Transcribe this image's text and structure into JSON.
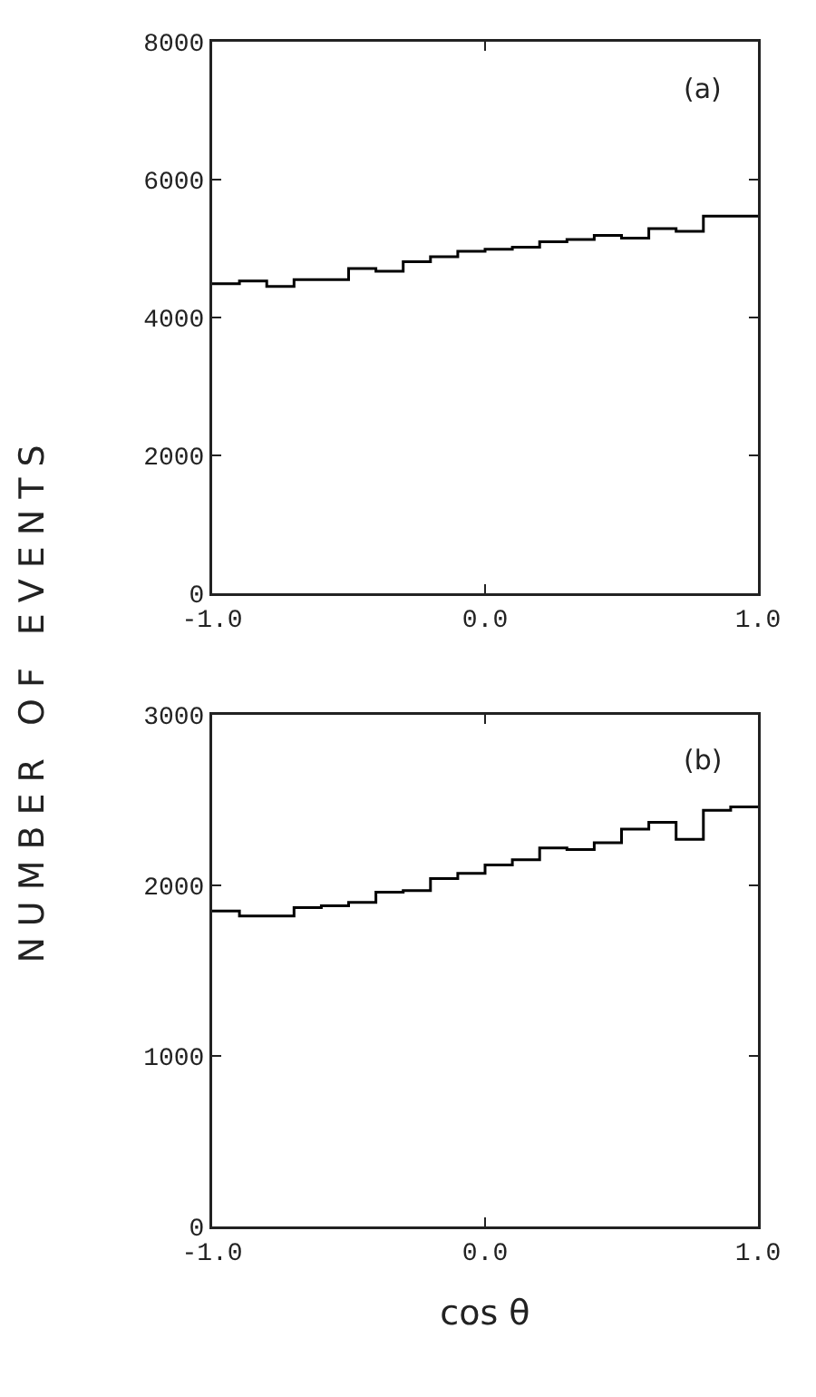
{
  "chart_data": [
    {
      "type": "histogram",
      "ylabel": "NUMBER OF EVENTS",
      "annotations": [
        "(a)"
      ],
      "color": "#000000",
      "bins": [
        -1.0,
        -0.9,
        -0.8,
        -0.7,
        -0.6,
        -0.5,
        -0.4,
        -0.3,
        -0.2,
        -0.1,
        0.0,
        0.1,
        0.2,
        0.3,
        0.4,
        0.5,
        0.6,
        0.7,
        0.8,
        0.9,
        1.0
      ],
      "values": [
        4490,
        4530,
        4450,
        4550,
        4550,
        4710,
        4670,
        4810,
        4880,
        4960,
        4990,
        5020,
        5100,
        5130,
        5190,
        5150,
        5290,
        5250,
        5470,
        5470
      ],
      "xlim": [
        -1.0,
        1.0
      ],
      "xticks": [
        {
          "value": -1,
          "label": "-1.0"
        },
        {
          "value": 0,
          "label": "0.0"
        },
        {
          "value": 1,
          "label": "1.0"
        }
      ],
      "ylim": [
        0,
        8000
      ],
      "yticks": [
        0,
        2000,
        4000,
        6000,
        8000
      ],
      "grid": false
    },
    {
      "type": "histogram",
      "xlabel": "cos θ",
      "annotations": [
        "(b)"
      ],
      "color": "#000000",
      "bins": [
        -1.0,
        -0.9,
        -0.8,
        -0.7,
        -0.6,
        -0.5,
        -0.4,
        -0.3,
        -0.2,
        -0.1,
        0.0,
        0.1,
        0.2,
        0.3,
        0.4,
        0.5,
        0.6,
        0.7,
        0.8,
        0.9,
        1.0
      ],
      "values": [
        1850,
        1820,
        1820,
        1870,
        1880,
        1900,
        1960,
        1970,
        2040,
        2070,
        2120,
        2150,
        2220,
        2210,
        2250,
        2330,
        2370,
        2270,
        2440,
        2460
      ],
      "xlim": [
        -1.0,
        1.0
      ],
      "xticks": [
        {
          "value": -1,
          "label": "-1.0"
        },
        {
          "value": 0,
          "label": "0.0"
        },
        {
          "value": 1,
          "label": "1.0"
        }
      ],
      "ylim": [
        0,
        3000
      ],
      "yticks": [
        0,
        1000,
        2000,
        3000
      ],
      "grid": false
    }
  ]
}
